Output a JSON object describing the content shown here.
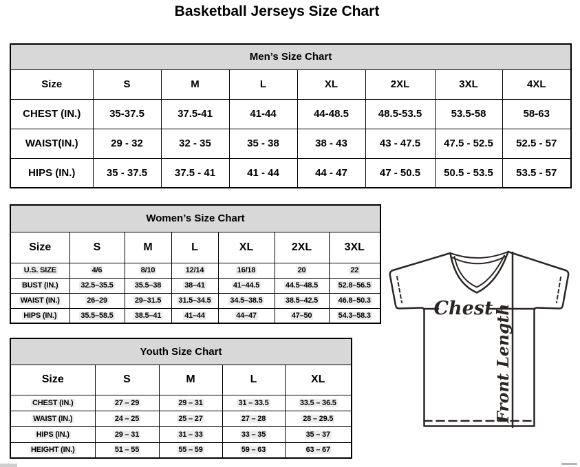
{
  "page": {
    "title": "Basketball Jerseys Size Chart"
  },
  "tables": [
    {
      "id": "mens",
      "title": "Men’s Size Chart",
      "columns": [
        "Size",
        "S",
        "M",
        "L",
        "XL",
        "2XL",
        "3XL",
        "4XL"
      ],
      "rows": [
        {
          "label": "CHEST (IN.)",
          "values": [
            "35-37.5",
            "37.5-41",
            "41-44",
            "44-48.5",
            "48.5-53.5",
            "53.5-58",
            "58-63"
          ]
        },
        {
          "label": "WAIST(IN.)",
          "values": [
            "29 - 32",
            "32 - 35",
            "35 - 38",
            "38 - 43",
            "43 - 47.5",
            "47.5 - 52.5",
            "52.5 - 57"
          ]
        },
        {
          "label": "HIPS (IN.)",
          "values": [
            "35 - 37.5",
            "37.5 - 41",
            "41 - 44",
            "44 - 47",
            "47 - 50.5",
            "50.5 - 53.5",
            "53.5 - 57"
          ]
        }
      ]
    },
    {
      "id": "womens",
      "title": "Women’s Size Chart",
      "columns": [
        "Size",
        "S",
        "M",
        "L",
        "XL",
        "2XL",
        "3XL"
      ],
      "rows": [
        {
          "label": "U.S. SIZE",
          "values": [
            "4/6",
            "8/10",
            "12/14",
            "16/18",
            "20",
            "22"
          ]
        },
        {
          "label": "BUST (IN.)",
          "values": [
            "32.5–35.5",
            "35.5–38",
            "38–41",
            "41–44.5",
            "44.5–48.5",
            "52.8–56.5"
          ]
        },
        {
          "label": "WAIST (IN.)",
          "values": [
            "26–29",
            "29–31.5",
            "31.5–34.5",
            "34.5–38.5",
            "38.5–42.5",
            "46.8–50.3"
          ]
        },
        {
          "label": "HIPS (IN.)",
          "values": [
            "35.5–58.5",
            "38.5–41",
            "41–44",
            "44–47",
            "47–50",
            "54.3–58.3"
          ]
        }
      ]
    },
    {
      "id": "youth",
      "title": "Youth Size Chart",
      "columns": [
        "Size",
        "S",
        "M",
        "L",
        "XL"
      ],
      "rows": [
        {
          "label": "CHEST (IN.)",
          "values": [
            "27 – 29",
            "29 – 31",
            "31 – 33.5",
            "33.5 – 36.5"
          ]
        },
        {
          "label": "WAIST (IN.)",
          "values": [
            "24 – 25",
            "25 – 27",
            "27 – 28",
            "28 – 29.5"
          ]
        },
        {
          "label": "HIPS (IN.)",
          "values": [
            "29 – 31",
            "31 – 33",
            "33 – 35",
            "35 – 37"
          ]
        },
        {
          "label": "HEIGHT (IN.)",
          "values": [
            "51 – 55",
            "55 – 59",
            "59 – 63",
            "63 – 67"
          ]
        }
      ]
    }
  ],
  "diagram": {
    "chest_label": "Chest",
    "front_length_label": "Front Length"
  },
  "colors": {
    "table_header_bg": "#d8d8d8",
    "border": "#000000",
    "ink": "#2b2523"
  }
}
